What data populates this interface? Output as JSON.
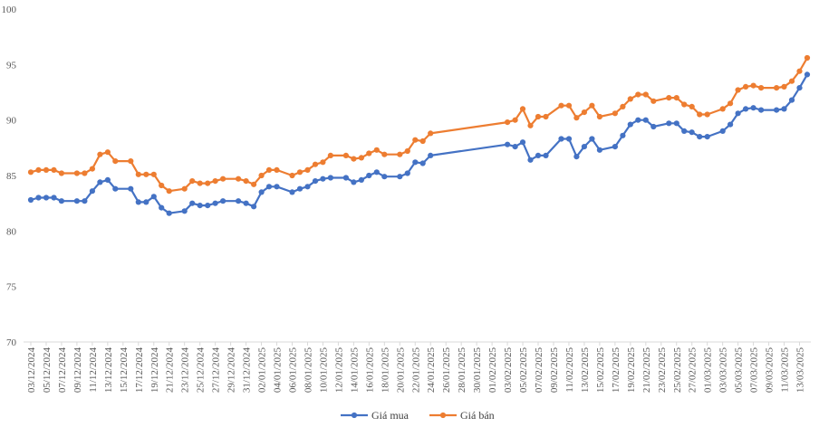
{
  "chart_data": {
    "type": "line",
    "title": "",
    "xlabel": "",
    "ylabel": "",
    "ylim": [
      70,
      100
    ],
    "yticks": [
      70,
      75,
      80,
      85,
      90,
      95,
      100
    ],
    "grid": false,
    "legend": "bottom-center",
    "x": [
      "03/12/2024",
      "04/12/2024",
      "05/12/2024",
      "06/12/2024",
      "07/12/2024",
      "09/12/2024",
      "10/12/2024",
      "11/12/2024",
      "12/12/2024",
      "13/12/2024",
      "14/12/2024",
      "16/12/2024",
      "17/12/2024",
      "18/12/2024",
      "19/12/2024",
      "20/12/2024",
      "21/12/2024",
      "23/12/2024",
      "24/12/2024",
      "25/12/2024",
      "26/12/2024",
      "27/12/2024",
      "28/12/2024",
      "30/12/2024",
      "31/12/2024",
      "01/01/2025",
      "02/01/2025",
      "03/01/2025",
      "04/01/2025",
      "06/01/2025",
      "07/01/2025",
      "08/01/2025",
      "09/01/2025",
      "10/01/2025",
      "11/01/2025",
      "13/01/2025",
      "14/01/2025",
      "15/01/2025",
      "16/01/2025",
      "17/01/2025",
      "18/01/2025",
      "20/01/2025",
      "21/01/2025",
      "22/01/2025",
      "23/01/2025",
      "24/01/2025",
      "03/02/2025",
      "04/02/2025",
      "05/02/2025",
      "06/02/2025",
      "07/02/2025",
      "08/02/2025",
      "10/02/2025",
      "11/02/2025",
      "12/02/2025",
      "13/02/2025",
      "14/02/2025",
      "15/02/2025",
      "17/02/2025",
      "18/02/2025",
      "19/02/2025",
      "20/02/2025",
      "21/02/2025",
      "22/02/2025",
      "24/02/2025",
      "25/02/2025",
      "26/02/2025",
      "27/02/2025",
      "28/02/2025",
      "01/03/2025",
      "03/03/2025",
      "04/03/2025",
      "05/03/2025",
      "06/03/2025",
      "07/03/2025",
      "08/03/2025",
      "10/03/2025",
      "11/03/2025",
      "12/03/2025",
      "13/03/2025",
      "14/03/2025"
    ],
    "x_tick_labels": [
      "03/12/2024",
      "05/12/2024",
      "07/12/2024",
      "09/12/2024",
      "11/12/2024",
      "13/12/2024",
      "15/12/2024",
      "17/12/2024",
      "19/12/2024",
      "21/12/2024",
      "23/12/2024",
      "25/12/2024",
      "27/12/2024",
      "29/12/2024",
      "31/12/2024",
      "02/01/2025",
      "04/01/2025",
      "06/01/2025",
      "08/01/2025",
      "10/01/2025",
      "12/01/2025",
      "14/01/2025",
      "16/01/2025",
      "18/01/2025",
      "20/01/2025",
      "22/01/2025",
      "24/01/2025",
      "26/01/2025",
      "28/01/2025",
      "30/01/2025",
      "01/02/2025",
      "03/02/2025",
      "05/02/2025",
      "07/02/2025",
      "09/02/2025",
      "11/02/2025",
      "13/02/2025",
      "15/02/2025",
      "17/02/2025",
      "19/02/2025",
      "21/02/2025",
      "23/02/2025",
      "25/02/2025",
      "27/02/2025",
      "01/03/2025",
      "03/03/2025",
      "05/03/2025",
      "07/03/2025",
      "09/03/2025",
      "11/03/2025",
      "13/03/2025"
    ],
    "series": [
      {
        "name": "Giá mua",
        "color": "#4472c4",
        "values": [
          82.8,
          83.0,
          83.0,
          83.0,
          82.7,
          82.7,
          82.7,
          83.6,
          84.4,
          84.6,
          83.8,
          83.8,
          82.6,
          82.6,
          83.1,
          82.1,
          81.6,
          81.8,
          82.5,
          82.3,
          82.3,
          82.5,
          82.7,
          82.7,
          82.5,
          82.2,
          83.5,
          84.0,
          84.0,
          83.5,
          83.8,
          84.0,
          84.5,
          84.7,
          84.8,
          84.8,
          84.4,
          84.6,
          85.0,
          85.3,
          84.9,
          84.9,
          85.2,
          86.2,
          86.1,
          86.8,
          87.8,
          87.6,
          88.0,
          86.4,
          86.8,
          86.8,
          88.3,
          88.3,
          86.7,
          87.6,
          88.3,
          87.3,
          87.6,
          88.6,
          89.6,
          90.0,
          90.0,
          89.4,
          89.7,
          89.7,
          89.0,
          88.9,
          88.5,
          88.5,
          89.0,
          89.6,
          90.6,
          91.0,
          91.1,
          90.9,
          90.9,
          91.0,
          91.8,
          92.9,
          94.1
        ]
      },
      {
        "name": "Giá bán",
        "color": "#ed7d31",
        "values": [
          85.3,
          85.5,
          85.5,
          85.5,
          85.2,
          85.2,
          85.2,
          85.6,
          86.9,
          87.1,
          86.3,
          86.3,
          85.1,
          85.1,
          85.1,
          84.1,
          83.6,
          83.8,
          84.5,
          84.3,
          84.3,
          84.5,
          84.7,
          84.7,
          84.5,
          84.2,
          85.0,
          85.5,
          85.5,
          85.0,
          85.3,
          85.5,
          86.0,
          86.2,
          86.8,
          86.8,
          86.5,
          86.6,
          87.0,
          87.3,
          86.9,
          86.9,
          87.2,
          88.2,
          88.1,
          88.8,
          89.8,
          90.0,
          91.0,
          89.5,
          90.3,
          90.3,
          91.3,
          91.3,
          90.2,
          90.7,
          91.3,
          90.3,
          90.6,
          91.2,
          91.9,
          92.3,
          92.3,
          91.7,
          92.0,
          92.0,
          91.4,
          91.2,
          90.5,
          90.5,
          91.0,
          91.5,
          92.7,
          93.0,
          93.1,
          92.9,
          92.9,
          93.0,
          93.5,
          94.4,
          95.6
        ]
      }
    ]
  }
}
